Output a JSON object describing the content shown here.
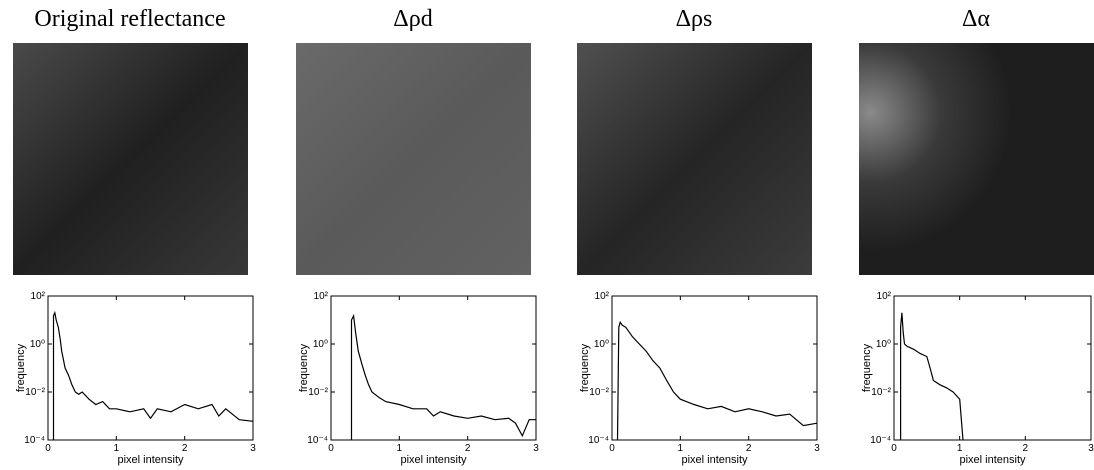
{
  "chart_data": [
    {
      "type": "line",
      "title": "Original reflectance",
      "xlabel": "pixel intensity",
      "ylabel": "frequency",
      "x": [
        0.08,
        0.08,
        0.1,
        0.12,
        0.15,
        0.18,
        0.2,
        0.25,
        0.3,
        0.35,
        0.4,
        0.45,
        0.5,
        0.6,
        0.7,
        0.8,
        0.9,
        1.0,
        1.2,
        1.4,
        1.5,
        1.6,
        1.8,
        2.0,
        2.2,
        2.4,
        2.5,
        2.6,
        2.8,
        3.0
      ],
      "values": [
        0.0001,
        15,
        20,
        10,
        5,
        1.5,
        0.5,
        0.1,
        0.05,
        0.02,
        0.01,
        0.008,
        0.01,
        0.005,
        0.003,
        0.004,
        0.002,
        0.002,
        0.0015,
        0.002,
        0.0008,
        0.002,
        0.0015,
        0.003,
        0.002,
        0.003,
        0.001,
        0.002,
        0.0007,
        0.0006
      ],
      "xlim": [
        0,
        3
      ],
      "ylim": [
        0.0001,
        100
      ],
      "xticks": [
        0,
        1,
        2,
        3
      ],
      "yticks": [
        {
          "value": 0.0001,
          "label": "10⁻⁴"
        },
        {
          "value": 0.01,
          "label": "10⁻²"
        },
        {
          "value": 1,
          "label": "10⁰"
        },
        {
          "value": 100,
          "label": "10²"
        }
      ],
      "log_y": true,
      "color": "#000000"
    },
    {
      "type": "line",
      "title": "Δρd",
      "xlabel": "pixel intensity",
      "ylabel": "frequency",
      "x": [
        0.3,
        0.3,
        0.33,
        0.36,
        0.4,
        0.45,
        0.5,
        0.55,
        0.6,
        0.7,
        0.8,
        1.0,
        1.2,
        1.4,
        1.5,
        1.6,
        1.8,
        2.0,
        2.2,
        2.4,
        2.6,
        2.7,
        2.8,
        2.9,
        3.0
      ],
      "values": [
        0.0001,
        10,
        15,
        3,
        0.5,
        0.15,
        0.05,
        0.02,
        0.01,
        0.006,
        0.004,
        0.003,
        0.002,
        0.002,
        0.001,
        0.0015,
        0.001,
        0.0008,
        0.001,
        0.0007,
        0.0008,
        0.0005,
        0.00015,
        0.0007,
        0.0007
      ],
      "xlim": [
        0,
        3
      ],
      "ylim": [
        0.0001,
        100
      ],
      "xticks": [
        0,
        1,
        2,
        3
      ],
      "yticks": [
        {
          "value": 0.0001,
          "label": "10⁻⁴"
        },
        {
          "value": 0.01,
          "label": "10⁻²"
        },
        {
          "value": 1,
          "label": "10⁰"
        },
        {
          "value": 100,
          "label": "10²"
        }
      ],
      "log_y": true,
      "color": "#000000"
    },
    {
      "type": "line",
      "title": "Δρs",
      "xlabel": "pixel intensity",
      "ylabel": "frequency",
      "x": [
        0.08,
        0.1,
        0.12,
        0.15,
        0.2,
        0.3,
        0.4,
        0.5,
        0.6,
        0.7,
        0.8,
        0.9,
        1.0,
        1.2,
        1.4,
        1.6,
        1.8,
        2.0,
        2.2,
        2.4,
        2.6,
        2.8,
        3.0
      ],
      "values": [
        0.0001,
        5,
        8,
        6,
        5,
        2,
        1,
        0.5,
        0.2,
        0.1,
        0.03,
        0.01,
        0.005,
        0.003,
        0.002,
        0.0025,
        0.0015,
        0.002,
        0.0015,
        0.001,
        0.0012,
        0.0004,
        0.0005
      ],
      "xlim": [
        0,
        3
      ],
      "ylim": [
        0.0001,
        100
      ],
      "xticks": [
        0,
        1,
        2,
        3
      ],
      "yticks": [
        {
          "value": 0.0001,
          "label": "10⁻⁴"
        },
        {
          "value": 0.01,
          "label": "10⁻²"
        },
        {
          "value": 1,
          "label": "10⁰"
        },
        {
          "value": 100,
          "label": "10²"
        }
      ],
      "log_y": true,
      "color": "#000000"
    },
    {
      "type": "line",
      "title": "Δα",
      "xlabel": "pixel intensity",
      "ylabel": "frequency",
      "x": [
        0.1,
        0.1,
        0.12,
        0.14,
        0.16,
        0.2,
        0.3,
        0.4,
        0.5,
        0.55,
        0.6,
        0.7,
        0.8,
        0.9,
        1.0,
        1.05
      ],
      "values": [
        0.0001,
        5,
        20,
        3,
        1,
        0.8,
        0.6,
        0.4,
        0.3,
        0.1,
        0.03,
        0.02,
        0.015,
        0.01,
        0.005,
        0.0001
      ],
      "xlim": [
        0,
        3
      ],
      "ylim": [
        0.0001,
        100
      ],
      "xticks": [
        0,
        1,
        2,
        3
      ],
      "yticks": [
        {
          "value": 0.0001,
          "label": "10⁻⁴"
        },
        {
          "value": 0.01,
          "label": "10⁻²"
        },
        {
          "value": 1,
          "label": "10⁰"
        },
        {
          "value": 100,
          "label": "10²"
        }
      ],
      "log_y": true,
      "color": "#000000"
    }
  ]
}
